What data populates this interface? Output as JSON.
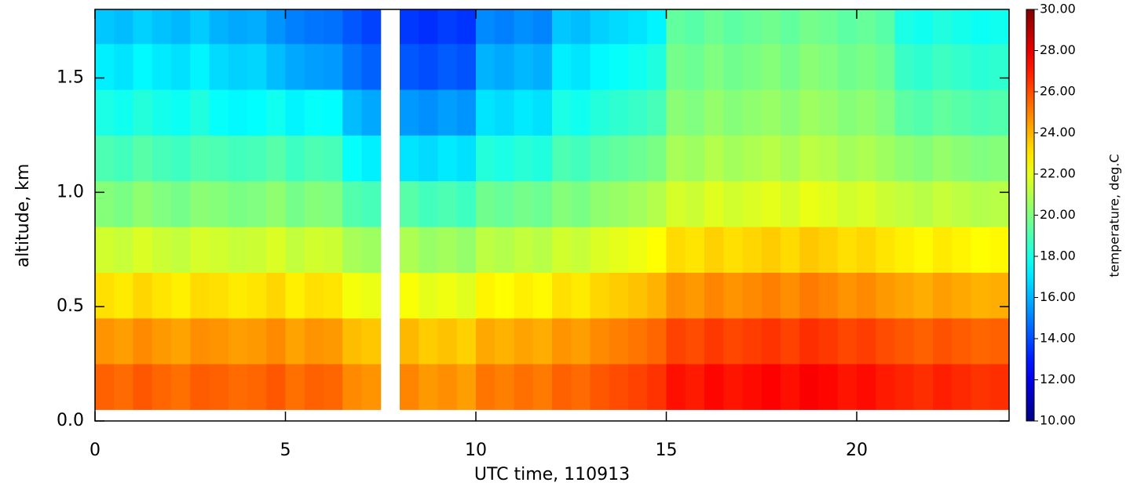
{
  "chart_data": {
    "type": "heatmap",
    "xlabel": "UTC time, 110913",
    "ylabel": "altitude, km",
    "colorbar_label": "temperature, deg.C",
    "colormap": "jet",
    "clim": [
      10,
      30
    ],
    "cticks": [
      {
        "value": 10,
        "label": "10.00"
      },
      {
        "value": 12,
        "label": "12.00"
      },
      {
        "value": 14,
        "label": "14.00"
      },
      {
        "value": 16,
        "label": "16.00"
      },
      {
        "value": 18,
        "label": "18.00"
      },
      {
        "value": 20,
        "label": "20.00"
      },
      {
        "value": 22,
        "label": "22.00"
      },
      {
        "value": 24,
        "label": "24.00"
      },
      {
        "value": 26,
        "label": "26.00"
      },
      {
        "value": 28,
        "label": "28.00"
      },
      {
        "value": 30,
        "label": "30.00"
      }
    ],
    "xlim": [
      0,
      24
    ],
    "xticks": [
      0,
      5,
      10,
      15,
      20
    ],
    "ylim": [
      0,
      1.8
    ],
    "yticks": [
      {
        "value": 0,
        "label": "0.0"
      },
      {
        "value": 0.5,
        "label": "0.5"
      },
      {
        "value": 1,
        "label": "1.0"
      },
      {
        "value": 1.5,
        "label": "1.5"
      }
    ],
    "x_bins": [
      0,
      0.5,
      1,
      1.5,
      2,
      2.5,
      3,
      3.5,
      4,
      4.5,
      5,
      5.5,
      6,
      6.5,
      7,
      7.5,
      8,
      8.5,
      9,
      9.5,
      10,
      10.5,
      11,
      11.5,
      12,
      12.5,
      13,
      13.5,
      14,
      14.5,
      15,
      15.5,
      16,
      16.5,
      17,
      17.5,
      18,
      18.5,
      19,
      19.5,
      20,
      20.5,
      21,
      21.5,
      22,
      22.5,
      23,
      23.5,
      24
    ],
    "y_bins": [
      0.05,
      0.25,
      0.45,
      0.65,
      0.85,
      1.05,
      1.25,
      1.45,
      1.65,
      1.8
    ],
    "z": [
      [
        25.6,
        25.4,
        25.8,
        25.5,
        25.3,
        25.7,
        25.6,
        25.4,
        25.5,
        25.8,
        25.3,
        25.6,
        25.5,
        24.8,
        24.6,
        null,
        24.9,
        24.5,
        24.7,
        24.4,
        25.2,
        25.0,
        25.3,
        25.1,
        25.6,
        25.4,
        25.8,
        26.0,
        26.2,
        26.5,
        27.2,
        27.0,
        27.4,
        27.1,
        27.3,
        27.5,
        27.2,
        27.6,
        27.4,
        27.1,
        27.3,
        27.0,
        26.8,
        26.6,
        26.9,
        26.7,
        26.5,
        26.6
      ],
      [
        24.6,
        24.4,
        24.8,
        24.5,
        24.3,
        24.7,
        24.6,
        24.4,
        24.5,
        24.8,
        24.3,
        24.6,
        24.5,
        23.8,
        23.6,
        null,
        23.9,
        23.5,
        23.7,
        23.4,
        24.2,
        24.0,
        24.3,
        24.1,
        24.6,
        24.4,
        24.8,
        25.0,
        25.2,
        25.5,
        26.2,
        26.0,
        26.4,
        26.1,
        26.3,
        26.5,
        26.2,
        26.6,
        26.4,
        26.1,
        26.3,
        26.0,
        25.8,
        25.6,
        25.9,
        25.7,
        25.5,
        25.6
      ],
      [
        23.1,
        22.9,
        23.3,
        23.0,
        22.8,
        23.2,
        23.1,
        22.9,
        23.0,
        23.3,
        22.8,
        23.1,
        23.0,
        22.3,
        22.1,
        null,
        22.4,
        22.0,
        22.2,
        21.9,
        22.7,
        22.5,
        22.8,
        22.6,
        23.1,
        22.9,
        23.3,
        23.5,
        23.7,
        24.0,
        24.7,
        24.5,
        24.9,
        24.6,
        24.8,
        25.0,
        24.7,
        25.1,
        24.9,
        24.6,
        24.8,
        24.5,
        24.3,
        24.1,
        24.4,
        24.2,
        24.0,
        24.1
      ],
      [
        21.6,
        21.4,
        21.8,
        21.5,
        21.3,
        21.7,
        21.6,
        21.4,
        21.5,
        21.8,
        21.3,
        21.6,
        21.5,
        20.8,
        20.6,
        null,
        20.9,
        20.5,
        20.7,
        20.4,
        21.2,
        21.0,
        21.3,
        21.1,
        21.6,
        21.4,
        21.8,
        22.0,
        22.2,
        22.5,
        23.2,
        23.0,
        23.4,
        23.1,
        23.3,
        23.5,
        23.2,
        23.6,
        23.4,
        23.1,
        23.3,
        23.0,
        22.8,
        22.6,
        22.9,
        22.7,
        22.5,
        22.6
      ],
      [
        20.1,
        19.9,
        20.3,
        20.0,
        19.8,
        20.2,
        20.1,
        19.9,
        20.0,
        20.3,
        19.8,
        20.1,
        20.0,
        19.1,
        18.9,
        null,
        19.2,
        18.8,
        19.0,
        18.7,
        19.7,
        19.5,
        19.8,
        19.6,
        20.1,
        19.9,
        20.3,
        20.5,
        20.7,
        21.0,
        21.7,
        21.5,
        21.9,
        21.6,
        21.8,
        22.0,
        21.7,
        22.1,
        21.9,
        21.6,
        21.8,
        21.5,
        21.3,
        21.1,
        21.4,
        21.2,
        21.0,
        21.1
      ],
      [
        19.0,
        18.8,
        19.2,
        18.9,
        18.7,
        19.1,
        19.0,
        18.8,
        18.9,
        19.2,
        18.7,
        19.0,
        18.9,
        17.6,
        17.2,
        null,
        17.0,
        16.8,
        17.1,
        16.9,
        18.2,
        18.0,
        18.3,
        18.1,
        19.0,
        18.8,
        19.2,
        19.4,
        19.6,
        19.9,
        20.8,
        20.6,
        21.0,
        20.7,
        20.9,
        21.1,
        20.8,
        21.2,
        21.0,
        20.7,
        20.9,
        20.6,
        20.3,
        20.1,
        20.4,
        20.2,
        20.0,
        20.1
      ],
      [
        18.0,
        17.8,
        18.2,
        17.9,
        17.7,
        18.1,
        17.6,
        17.4,
        17.5,
        17.8,
        17.3,
        17.6,
        17.5,
        16.2,
        15.8,
        null,
        15.5,
        15.3,
        15.6,
        15.4,
        17.0,
        16.8,
        17.1,
        16.9,
        18.0,
        17.8,
        18.2,
        18.4,
        18.6,
        18.9,
        20.2,
        20.0,
        20.4,
        20.1,
        20.3,
        20.5,
        20.2,
        20.6,
        20.4,
        20.1,
        20.3,
        20.0,
        19.3,
        19.1,
        19.4,
        19.2,
        19.0,
        19.1
      ],
      [
        17.2,
        17.0,
        17.4,
        17.1,
        16.9,
        17.3,
        16.8,
        16.6,
        16.7,
        16.2,
        15.8,
        15.6,
        15.5,
        14.8,
        14.4,
        null,
        14.2,
        14.0,
        14.3,
        14.1,
        16.0,
        15.8,
        16.1,
        15.9,
        17.2,
        17.0,
        17.4,
        17.6,
        17.8,
        18.1,
        19.8,
        19.6,
        20.0,
        19.7,
        19.9,
        20.1,
        19.8,
        20.2,
        20.0,
        19.7,
        19.9,
        19.6,
        18.6,
        18.4,
        18.7,
        18.5,
        18.3,
        18.4
      ],
      [
        16.4,
        16.2,
        16.6,
        16.3,
        16.1,
        16.5,
        16.0,
        15.8,
        15.9,
        15.4,
        15.0,
        14.8,
        14.7,
        14.2,
        13.8,
        null,
        13.6,
        13.4,
        13.7,
        13.5,
        15.2,
        15.0,
        15.3,
        15.1,
        16.4,
        16.2,
        16.6,
        16.8,
        17.0,
        17.3,
        19.4,
        19.2,
        19.6,
        19.3,
        19.5,
        19.7,
        19.4,
        19.8,
        19.6,
        19.3,
        19.5,
        19.2,
        18.0,
        17.8,
        18.1,
        17.9,
        17.7,
        17.8
      ]
    ]
  }
}
